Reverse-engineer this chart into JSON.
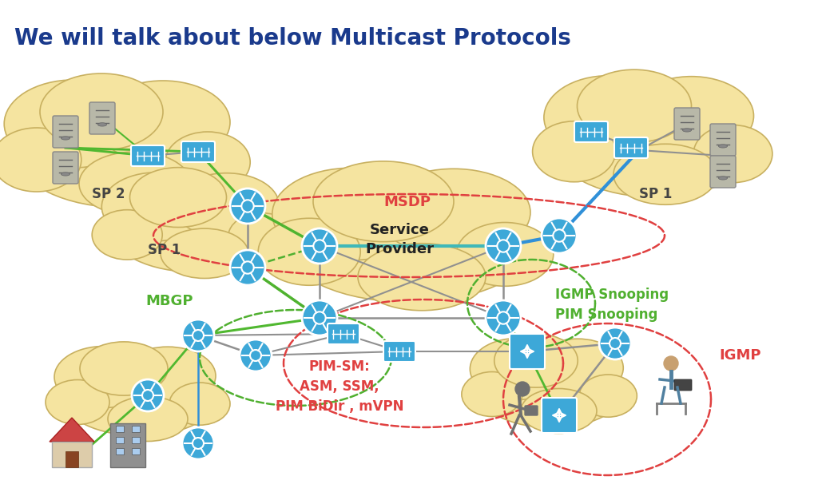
{
  "title": "We will talk about below Multicast Protocols",
  "title_color": "#1a3a8c",
  "title_fontsize": 20,
  "bg_color": "#ffffff",
  "cloud_color": "#f5e4a0",
  "cloud_edge": "#c8b060",
  "router_color": "#3da8d8",
  "switch_color": "#3da8d8",
  "server_color": "#b8b8a8",
  "green_line": "#50b830",
  "blue_line": "#3090d8",
  "gray_line": "#909090",
  "teal_line": "#40b8b8",
  "dashed_red": "#e04040",
  "dashed_green": "#50b030",
  "labels": {
    "sp2": "SP 2",
    "sp1_left": "SP 1",
    "sp1_right": "SP 1",
    "service_provider": "Service\nProvider",
    "msdp": "MSDP",
    "mbgp": "MBGP",
    "igmp_snooping": "IGMP Snooping\nPIM Snooping",
    "pim_sm": "PIM-SM:\nASM, SSM,\nPIM BiDir , mVPN",
    "igmp": "IGMP"
  },
  "label_colors": {
    "msdp": "#e04040",
    "mbgp": "#50b030",
    "igmp_snooping": "#50b030",
    "pim_sm": "#e04040",
    "igmp": "#e04040",
    "sp": "#444444",
    "service_provider": "#222222"
  }
}
